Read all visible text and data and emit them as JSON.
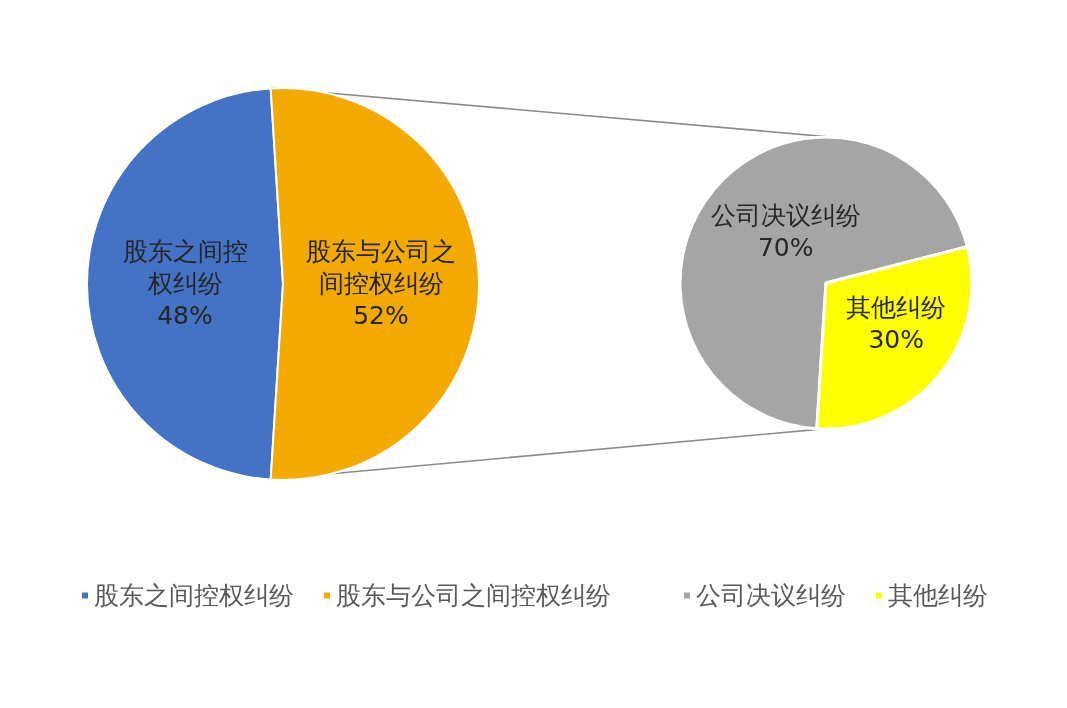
{
  "chart_data": [
    {
      "type": "pie",
      "categories": [
        "股东之间控权纠纷",
        "股东与公司之间控权纠纷"
      ],
      "values": [
        48,
        52
      ],
      "colors": [
        "#4472c4",
        "#f2a900"
      ],
      "value_labels": [
        "48%",
        "52%"
      ],
      "legend": "bottom"
    },
    {
      "type": "pie",
      "categories": [
        "公司决议纠纷",
        "其他纠纷"
      ],
      "values": [
        70,
        30
      ],
      "colors": [
        "#a5a5a5",
        "#ffff00"
      ],
      "value_labels": [
        "70%",
        "30%"
      ],
      "legend": "bottom"
    }
  ]
}
